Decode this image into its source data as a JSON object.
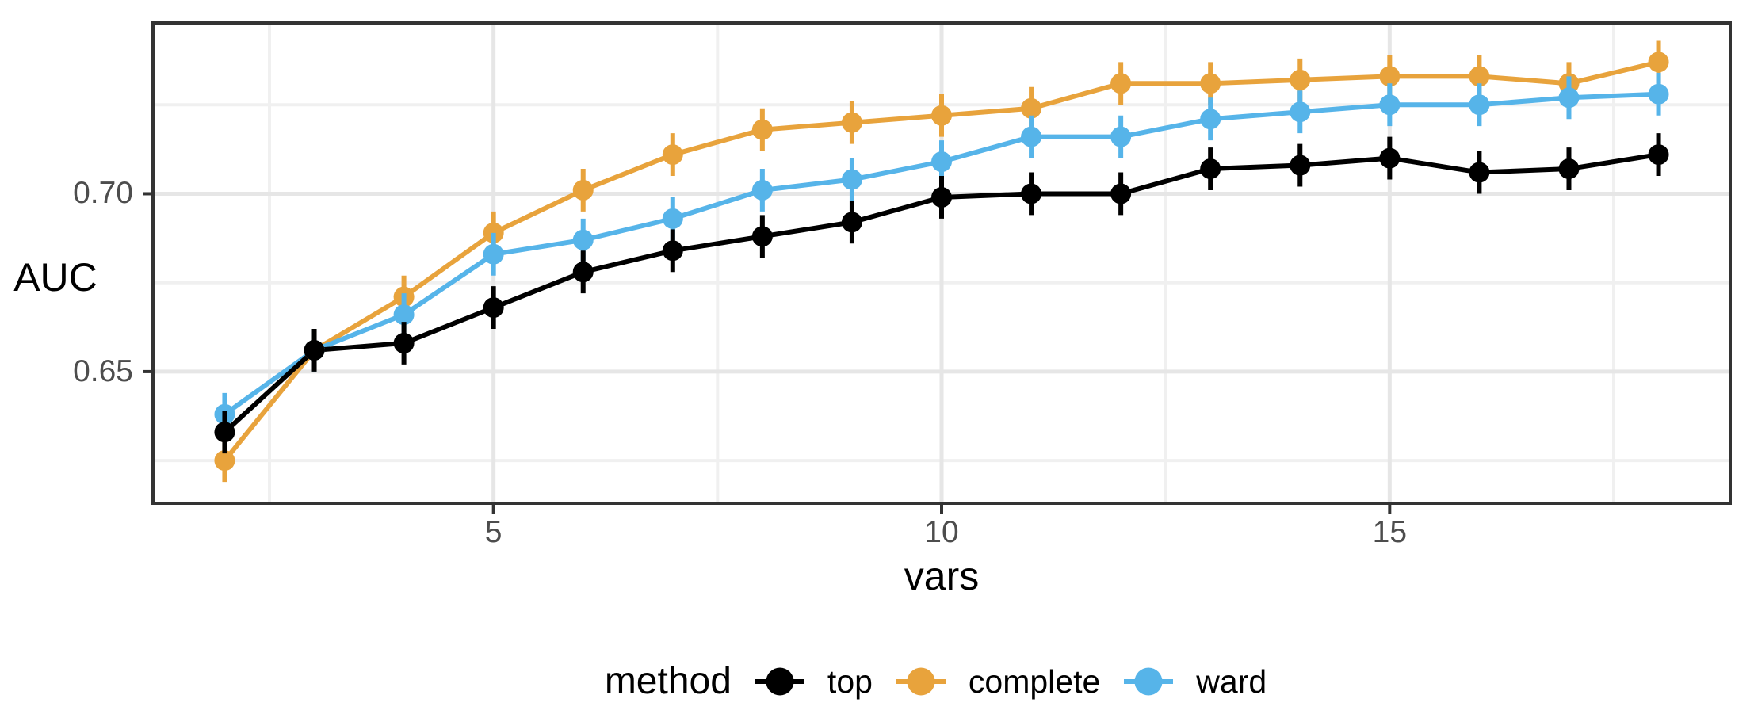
{
  "chart_data": {
    "type": "line",
    "title": "",
    "xlabel": "vars",
    "ylabel": "AUC",
    "legend_title": "method",
    "legend_position": "bottom",
    "grid": true,
    "x": [
      2,
      3,
      4,
      5,
      6,
      7,
      8,
      9,
      10,
      11,
      12,
      13,
      14,
      15,
      16,
      17,
      18
    ],
    "series": [
      {
        "name": "top",
        "color": "#000000",
        "values": [
          0.633,
          0.656,
          0.658,
          0.668,
          0.678,
          0.684,
          0.688,
          0.692,
          0.699,
          0.7,
          0.7,
          0.707,
          0.708,
          0.71,
          0.706,
          0.707,
          0.711
        ]
      },
      {
        "name": "complete",
        "color": "#E8A33C",
        "values": [
          0.625,
          0.656,
          0.671,
          0.689,
          0.701,
          0.711,
          0.718,
          0.72,
          0.722,
          0.724,
          0.731,
          0.731,
          0.732,
          0.733,
          0.733,
          0.731,
          0.737
        ]
      },
      {
        "name": "ward",
        "color": "#56B4E9",
        "values": [
          0.638,
          0.656,
          0.666,
          0.683,
          0.687,
          0.693,
          0.701,
          0.704,
          0.709,
          0.716,
          0.716,
          0.721,
          0.723,
          0.725,
          0.725,
          0.727,
          0.728
        ]
      }
    ],
    "error_bar_half": 0.006,
    "xlim": [
      1.2,
      18.8
    ],
    "ylim": [
      0.613,
      0.748
    ],
    "x_ticks": {
      "major": [
        5,
        10,
        15
      ],
      "labels": [
        "5",
        "10",
        "15"
      ],
      "minor": [
        2.5,
        7.5,
        12.5,
        17.5
      ]
    },
    "y_ticks": {
      "major": [
        0.65,
        0.7
      ],
      "labels": [
        "0.65",
        "0.70"
      ],
      "minor": [
        0.625,
        0.675,
        0.725
      ]
    },
    "colors": {
      "grid_major": "#E6E6E6",
      "grid_minor": "#F0F0F0",
      "panel_border": "#333333",
      "tick_mark": "#333333",
      "tick_label": "#4D4D4D",
      "axis_title": "#000000"
    }
  }
}
